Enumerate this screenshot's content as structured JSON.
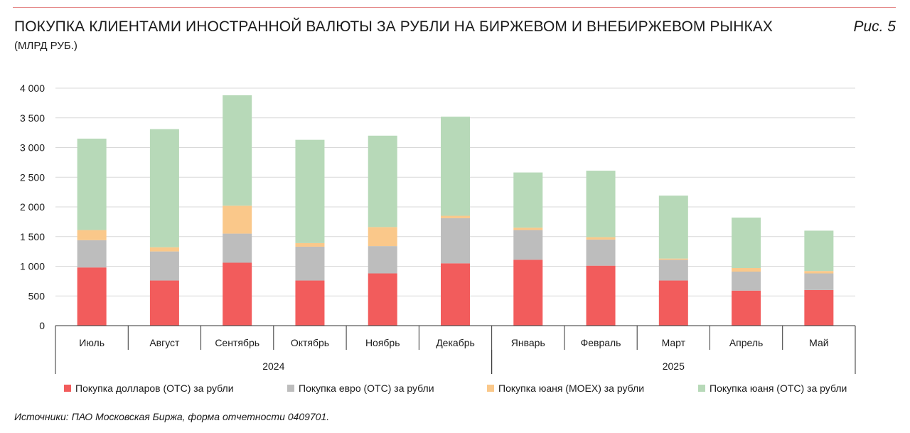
{
  "header": {
    "title": "ПОКУПКА КЛИЕНТАМИ ИНОСТРАННОЙ ВАЛЮТЫ ЗА РУБЛИ НА БИРЖЕВОМ И ВНЕБИРЖЕВОМ РЫНКАХ",
    "subtitle": "(МЛРД РУБ.)",
    "figure_label": "Рис. 5"
  },
  "source": "Источники: ПАО Московская Биржа, форма отчетности 0409701.",
  "colors": {
    "usd_otc": "#f25c5c",
    "eur_otc": "#bdbdbd",
    "cny_moex": "#fac88a",
    "cny_otc": "#b7d9b8",
    "grid": "#d9d9d9",
    "axis": "#333333"
  },
  "chart_data": {
    "type": "bar",
    "stacked": true,
    "categories": [
      "Июль",
      "Август",
      "Сентябрь",
      "Октябрь",
      "Ноябрь",
      "Декабрь",
      "Январь",
      "Февраль",
      "Март",
      "Апрель",
      "Май"
    ],
    "year_groups": [
      {
        "label": "2024",
        "start": 0,
        "end": 5
      },
      {
        "label": "2025",
        "start": 6,
        "end": 10
      }
    ],
    "yticks": [
      "0",
      "500",
      "1 000",
      "1 500",
      "2 000",
      "2 500",
      "3 000",
      "3 500",
      "4 000"
    ],
    "ylim": [
      0,
      4000
    ],
    "grid": true,
    "legend_position": "bottom",
    "series": [
      {
        "name": "Покупка долларов (OTC) за рубли",
        "color_key": "usd_otc",
        "values": [
          980,
          760,
          1060,
          760,
          880,
          1050,
          1110,
          1010,
          760,
          590,
          600
        ]
      },
      {
        "name": "Покупка евро (OTC) за рубли",
        "color_key": "eur_otc",
        "values": [
          460,
          490,
          490,
          570,
          460,
          760,
          500,
          440,
          350,
          320,
          280
        ]
      },
      {
        "name": "Покупка юаня (MOEX) за рубли",
        "color_key": "cny_moex",
        "values": [
          170,
          70,
          470,
          60,
          320,
          40,
          40,
          40,
          20,
          60,
          40
        ]
      },
      {
        "name": "Покупка юаня (OTC) за рубли",
        "color_key": "cny_otc",
        "values": [
          1540,
          1990,
          1860,
          1740,
          1540,
          1670,
          930,
          1120,
          1060,
          850,
          680
        ]
      }
    ]
  }
}
